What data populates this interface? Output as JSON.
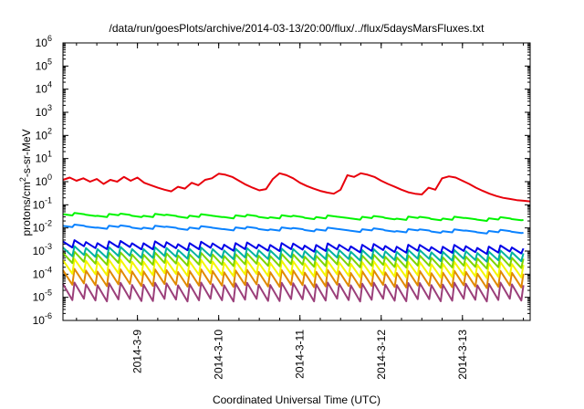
{
  "chart_data": {
    "type": "line",
    "title": "/data/run/goesPlots/archive/2014-03-13/20:00/flux/../flux/5daysMarsFluxes.txt",
    "xlabel": "Coordinated Universal Time (UTC)",
    "ylabel": {
      "prefix": "protons/cm",
      "superscript": "2",
      "suffix": "-s-sr-MeV"
    },
    "yscale": "log",
    "ylim": [
      1e-06,
      1000000.0
    ],
    "yticks": [
      {
        "value": 1e-06,
        "base": "10",
        "exp": "-6"
      },
      {
        "value": 1e-05,
        "base": "10",
        "exp": "-5"
      },
      {
        "value": 0.0001,
        "base": "10",
        "exp": "-4"
      },
      {
        "value": 0.001,
        "base": "10",
        "exp": "-3"
      },
      {
        "value": 0.01,
        "base": "10",
        "exp": "-2"
      },
      {
        "value": 0.1,
        "base": "10",
        "exp": "-1"
      },
      {
        "value": 1,
        "base": "10",
        "exp": "0"
      },
      {
        "value": 10,
        "base": "10",
        "exp": "1"
      },
      {
        "value": 100,
        "base": "10",
        "exp": "2"
      },
      {
        "value": 1000,
        "base": "10",
        "exp": "3"
      },
      {
        "value": 10000,
        "base": "10",
        "exp": "4"
      },
      {
        "value": 100000,
        "base": "10",
        "exp": "5"
      },
      {
        "value": 1000000,
        "base": "10",
        "exp": "6"
      }
    ],
    "xlim": [
      "2014-03-08T02:00",
      "2014-03-13T20:00"
    ],
    "xticks": [
      {
        "value": "2014-03-09T00:00",
        "label": "2014-3-9"
      },
      {
        "value": "2014-03-10T00:00",
        "label": "2014-3-10"
      },
      {
        "value": "2014-03-11T00:00",
        "label": "2014-3-11"
      },
      {
        "value": "2014-03-12T00:00",
        "label": "2014-3-12"
      },
      {
        "value": "2014-03-13T00:00",
        "label": "2014-3-13"
      }
    ],
    "grid": false,
    "series": [
      {
        "color": "#e8000b",
        "points": [
          [
            "2014-03-08T02:00",
            1.2
          ],
          [
            "2014-03-08T04:00",
            1.5
          ],
          [
            "2014-03-08T06:00",
            1.1
          ],
          [
            "2014-03-08T08:00",
            1.4
          ],
          [
            "2014-03-08T10:00",
            1.0
          ],
          [
            "2014-03-08T12:00",
            1.3
          ],
          [
            "2014-03-08T14:00",
            0.8
          ],
          [
            "2014-03-08T16:00",
            1.2
          ],
          [
            "2014-03-08T18:00",
            1.0
          ],
          [
            "2014-03-08T20:00",
            1.6
          ],
          [
            "2014-03-08T22:00",
            1.1
          ],
          [
            "2014-03-09T00:00",
            1.5
          ],
          [
            "2014-03-09T02:00",
            0.9
          ],
          [
            "2014-03-09T04:00",
            0.7
          ],
          [
            "2014-03-09T06:00",
            0.55
          ],
          [
            "2014-03-09T08:00",
            0.45
          ],
          [
            "2014-03-09T10:00",
            0.38
          ],
          [
            "2014-03-09T12:00",
            0.6
          ],
          [
            "2014-03-09T14:00",
            0.5
          ],
          [
            "2014-03-09T16:00",
            0.9
          ],
          [
            "2014-03-09T18:00",
            0.7
          ],
          [
            "2014-03-09T20:00",
            1.2
          ],
          [
            "2014-03-09T22:00",
            1.4
          ],
          [
            "2014-03-10T00:00",
            2.2
          ],
          [
            "2014-03-10T02:00",
            2.0
          ],
          [
            "2014-03-10T04:00",
            1.6
          ],
          [
            "2014-03-10T06:00",
            1.1
          ],
          [
            "2014-03-10T08:00",
            0.75
          ],
          [
            "2014-03-10T10:00",
            0.55
          ],
          [
            "2014-03-10T12:00",
            0.42
          ],
          [
            "2014-03-10T14:00",
            0.48
          ],
          [
            "2014-03-10T16:00",
            1.3
          ],
          [
            "2014-03-10T18:00",
            2.3
          ],
          [
            "2014-03-10T20:00",
            1.9
          ],
          [
            "2014-03-10T22:00",
            1.4
          ],
          [
            "2014-03-11T00:00",
            0.9
          ],
          [
            "2014-03-11T02:00",
            0.65
          ],
          [
            "2014-03-11T04:00",
            0.5
          ],
          [
            "2014-03-11T06:00",
            0.4
          ],
          [
            "2014-03-11T08:00",
            0.34
          ],
          [
            "2014-03-11T10:00",
            0.3
          ],
          [
            "2014-03-11T12:00",
            0.45
          ],
          [
            "2014-03-11T14:00",
            1.9
          ],
          [
            "2014-03-11T16:00",
            1.6
          ],
          [
            "2014-03-11T18:00",
            2.3
          ],
          [
            "2014-03-11T20:00",
            2.0
          ],
          [
            "2014-03-11T22:00",
            1.6
          ],
          [
            "2014-03-12T00:00",
            1.1
          ],
          [
            "2014-03-12T02:00",
            0.8
          ],
          [
            "2014-03-12T04:00",
            0.6
          ],
          [
            "2014-03-12T06:00",
            0.45
          ],
          [
            "2014-03-12T08:00",
            0.35
          ],
          [
            "2014-03-12T10:00",
            0.3
          ],
          [
            "2014-03-12T12:00",
            0.28
          ],
          [
            "2014-03-12T14:00",
            0.55
          ],
          [
            "2014-03-12T16:00",
            0.45
          ],
          [
            "2014-03-12T18:00",
            1.4
          ],
          [
            "2014-03-12T20:00",
            1.7
          ],
          [
            "2014-03-12T22:00",
            1.5
          ],
          [
            "2014-03-13T00:00",
            1.1
          ],
          [
            "2014-03-13T02:00",
            0.8
          ],
          [
            "2014-03-13T04:00",
            0.55
          ],
          [
            "2014-03-13T06:00",
            0.4
          ],
          [
            "2014-03-13T08:00",
            0.3
          ],
          [
            "2014-03-13T10:00",
            0.24
          ],
          [
            "2014-03-13T12:00",
            0.2
          ],
          [
            "2014-03-13T14:00",
            0.18
          ],
          [
            "2014-03-13T16:00",
            0.16
          ],
          [
            "2014-03-13T18:00",
            0.15
          ],
          [
            "2014-03-13T20:00",
            0.14
          ]
        ]
      },
      {
        "color": "#00f400",
        "base": 0.035,
        "amp": 0.05,
        "drop": 0.004,
        "trend": -0.2
      },
      {
        "color": "#0a82ff",
        "base": 0.011,
        "amp": 0.05,
        "drop": 0.003,
        "trend": -0.25
      },
      {
        "color": "#0000e8",
        "base": 0.0018,
        "amp": 0.16,
        "drop": 0.1,
        "trend": -0.25
      },
      {
        "color": "#00b3a0",
        "base": 0.0009,
        "amp": 0.2,
        "drop": 0.18,
        "trend": -0.2
      },
      {
        "color": "#7fd500",
        "base": 0.0005,
        "amp": 0.22,
        "drop": 0.22,
        "trend": -0.2
      },
      {
        "color": "#f5f500",
        "base": 0.0002,
        "amp": 0.3,
        "drop": 0.28,
        "trend": -0.15
      },
      {
        "color": "#e08a00",
        "base": 7e-05,
        "amp": 0.33,
        "drop": 0.3,
        "trend": -0.1
      },
      {
        "color": "#9b3f7a",
        "base": 1.2e-05,
        "amp": 0.5,
        "drop": 0.2,
        "trend": 0.0
      }
    ],
    "sawtooth_period_hours": 3.4
  }
}
